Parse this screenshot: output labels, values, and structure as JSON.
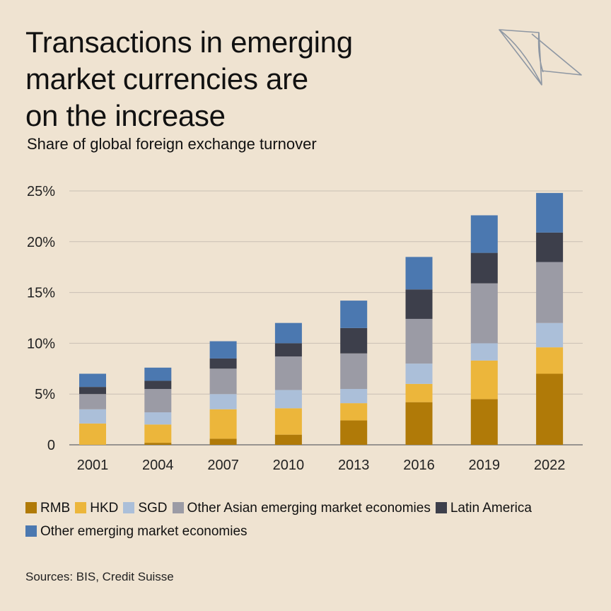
{
  "title_lines": [
    "Transactions in emerging",
    "market currencies are",
    "on the increase"
  ],
  "subtitle": "Share of global foreign exchange turnover",
  "source": "Sources: BIS, Credit Suisse",
  "logo_icon": "sails-logo-icon",
  "chart_data": {
    "type": "bar",
    "stacked": true,
    "categories": [
      "2001",
      "2004",
      "2007",
      "2010",
      "2013",
      "2016",
      "2019",
      "2022"
    ],
    "ylim": [
      0,
      25
    ],
    "yticks": [
      0,
      5,
      10,
      15,
      20,
      25
    ],
    "ytick_labels": [
      "0",
      "5%",
      "10%",
      "15%",
      "20%",
      "25%"
    ],
    "grid": true,
    "legend_position": "bottom",
    "series": [
      {
        "name": "RMB",
        "color": "#b07a08",
        "values": [
          0,
          0.2,
          0.6,
          1.0,
          2.4,
          4.2,
          4.5,
          7.0
        ]
      },
      {
        "name": "HKD",
        "color": "#ecb63b",
        "values": [
          2.1,
          1.8,
          2.9,
          2.6,
          1.7,
          1.8,
          3.8,
          2.6
        ]
      },
      {
        "name": "SGD",
        "color": "#abbfd9",
        "values": [
          1.4,
          1.2,
          1.5,
          1.8,
          1.4,
          2.0,
          1.7,
          2.4
        ]
      },
      {
        "name": "Other Asian emerging market economies",
        "color": "#9b9ba5",
        "values": [
          1.5,
          2.3,
          2.5,
          3.3,
          3.5,
          4.4,
          5.9,
          6.0
        ]
      },
      {
        "name": "Latin America",
        "color": "#3d3f4b",
        "values": [
          0.7,
          0.8,
          1.0,
          1.3,
          2.5,
          2.9,
          3.0,
          2.9
        ]
      },
      {
        "name": "Other emerging market economies",
        "color": "#4b78b0",
        "values": [
          1.3,
          1.3,
          1.7,
          2.0,
          2.7,
          3.2,
          3.7,
          3.9
        ]
      }
    ]
  }
}
